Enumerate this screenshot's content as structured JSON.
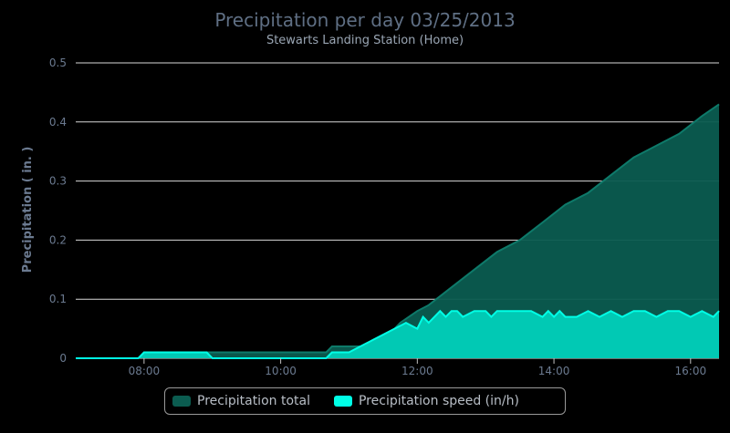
{
  "chart_data": {
    "type": "area",
    "title": "Precipitation per day 03/25/2013",
    "subtitle": "Stewarts Landing Station (Home)",
    "ylabel": "Precipitation ( in. )",
    "xlabel": "",
    "ylim": [
      0,
      0.5
    ],
    "xlim": [
      "07:00",
      "16:25"
    ],
    "y_ticks": [
      "0",
      "0.1",
      "0.2",
      "0.3",
      "0.4",
      "0.5"
    ],
    "x_ticks": [
      "08:00",
      "10:00",
      "12:00",
      "14:00",
      "16:00"
    ],
    "grid": true,
    "legend_position": "bottom",
    "series": [
      {
        "name": "Precipitation total",
        "color": "#0b5c50",
        "x": [
          "07:00",
          "07:55",
          "08:00",
          "08:55",
          "09:00",
          "10:40",
          "10:45",
          "11:15",
          "11:20",
          "11:40",
          "11:45",
          "12:00",
          "12:10",
          "12:30",
          "12:50",
          "13:10",
          "13:30",
          "13:50",
          "14:10",
          "14:30",
          "14:50",
          "15:10",
          "15:30",
          "15:50",
          "16:10",
          "16:25"
        ],
        "values": [
          0,
          0,
          0.01,
          0.01,
          0.01,
          0.01,
          0.02,
          0.02,
          0.03,
          0.05,
          0.06,
          0.08,
          0.09,
          0.12,
          0.15,
          0.18,
          0.2,
          0.23,
          0.26,
          0.28,
          0.31,
          0.34,
          0.36,
          0.38,
          0.41,
          0.43
        ]
      },
      {
        "name": "Precipitation speed (in/h)",
        "color": "#00d6c0",
        "x": [
          "07:00",
          "07:55",
          "08:00",
          "08:55",
          "09:00",
          "10:40",
          "10:45",
          "11:00",
          "11:10",
          "11:30",
          "11:40",
          "11:50",
          "12:00",
          "12:05",
          "12:10",
          "12:20",
          "12:25",
          "12:30",
          "12:35",
          "12:40",
          "12:50",
          "13:00",
          "13:05",
          "13:10",
          "13:20",
          "13:30",
          "13:40",
          "13:50",
          "13:55",
          "14:00",
          "14:05",
          "14:10",
          "14:20",
          "14:30",
          "14:40",
          "14:50",
          "15:00",
          "15:10",
          "15:20",
          "15:30",
          "15:40",
          "15:50",
          "16:00",
          "16:10",
          "16:20",
          "16:25"
        ],
        "values": [
          0,
          0,
          0.01,
          0.01,
          0,
          0,
          0.01,
          0.01,
          0.02,
          0.04,
          0.05,
          0.06,
          0.05,
          0.07,
          0.06,
          0.08,
          0.07,
          0.08,
          0.08,
          0.07,
          0.08,
          0.08,
          0.07,
          0.08,
          0.08,
          0.08,
          0.08,
          0.07,
          0.08,
          0.07,
          0.08,
          0.07,
          0.07,
          0.08,
          0.07,
          0.08,
          0.07,
          0.08,
          0.08,
          0.07,
          0.08,
          0.08,
          0.07,
          0.08,
          0.07,
          0.08
        ]
      }
    ]
  }
}
